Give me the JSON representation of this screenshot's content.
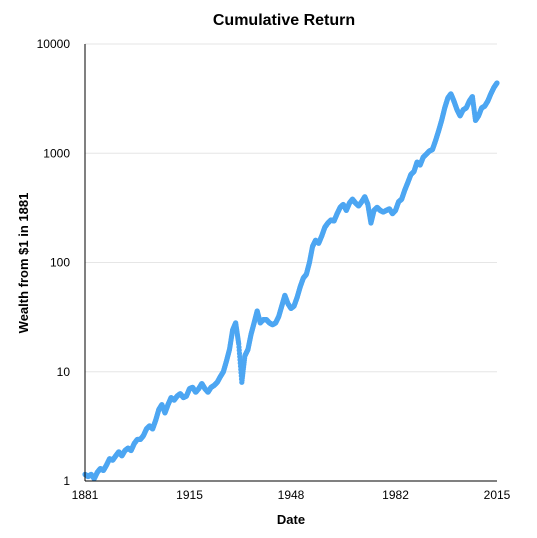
{
  "chart_data": {
    "type": "scatter",
    "title": "Cumulative Return",
    "xlabel": "Date",
    "ylabel": "Wealth from $1 in 1881",
    "xlim": [
      1881,
      2015
    ],
    "ylim": [
      1,
      10000
    ],
    "y_scale": "log",
    "x_ticks": [
      "1881",
      "1915",
      "1948",
      "1982",
      "2015"
    ],
    "y_ticks": [
      "1",
      "10",
      "100",
      "1000",
      "10000"
    ],
    "grid": "horizontal",
    "series_color": "#4da6f2",
    "series": [
      {
        "x": [
          1881,
          1882,
          1883,
          1884,
          1885,
          1886,
          1887,
          1888,
          1889,
          1890,
          1891,
          1892,
          1893,
          1894,
          1895,
          1896,
          1897,
          1898,
          1899,
          1900,
          1901,
          1902,
          1903,
          1904,
          1905,
          1906,
          1907,
          1908,
          1909,
          1910,
          1911,
          1912,
          1913,
          1914,
          1915,
          1916,
          1917,
          1918,
          1919,
          1920,
          1921,
          1922,
          1923,
          1924,
          1925,
          1926,
          1927,
          1928,
          1929,
          1930,
          1931,
          1932,
          1933,
          1934,
          1935,
          1936,
          1937,
          1938,
          1939,
          1940,
          1941,
          1942,
          1943,
          1944,
          1945,
          1946,
          1947,
          1948,
          1949,
          1950,
          1951,
          1952,
          1953,
          1954,
          1955,
          1956,
          1957,
          1958,
          1959,
          1960,
          1961,
          1962,
          1963,
          1964,
          1965,
          1966,
          1967,
          1968,
          1969,
          1970,
          1971,
          1972,
          1973,
          1974,
          1975,
          1976,
          1977,
          1978,
          1979,
          1980,
          1981,
          1982,
          1983,
          1984,
          1985,
          1986,
          1987,
          1988,
          1989,
          1990,
          1991,
          1992,
          1993,
          1994,
          1995,
          1996,
          1997,
          1998,
          1999,
          2000,
          2001,
          2002,
          2003,
          2004,
          2005,
          2006,
          2007,
          2008,
          2009,
          2010,
          2011,
          2012,
          2013,
          2014,
          2015
        ],
        "y": [
          1.15,
          1.1,
          1.15,
          1.05,
          1.2,
          1.3,
          1.25,
          1.4,
          1.6,
          1.55,
          1.7,
          1.85,
          1.7,
          1.9,
          2.0,
          1.9,
          2.2,
          2.4,
          2.4,
          2.6,
          3.0,
          3.2,
          3.0,
          3.6,
          4.5,
          5.0,
          4.2,
          5.0,
          5.8,
          5.5,
          6.0,
          6.3,
          5.8,
          6.0,
          7.0,
          7.2,
          6.5,
          7.0,
          7.8,
          7.0,
          6.5,
          7.2,
          7.5,
          8.0,
          9.0,
          10.0,
          12.5,
          16.0,
          24.0,
          28.0,
          18.0,
          8.0,
          14.0,
          16.0,
          22.0,
          28.0,
          36.0,
          28.0,
          30.0,
          30.0,
          28.0,
          27.0,
          28.0,
          32.0,
          40.0,
          50.0,
          42.0,
          38.0,
          40.0,
          48.0,
          60.0,
          72.0,
          78.0,
          100.0,
          140.0,
          160.0,
          150.0,
          175.0,
          210.0,
          230.0,
          245.0,
          240.0,
          280.0,
          320.0,
          340.0,
          300.0,
          350.0,
          380.0,
          350.0,
          330.0,
          360.0,
          400.0,
          340.0,
          230.0,
          300.0,
          320.0,
          300.0,
          290.0,
          300.0,
          310.0,
          280.0,
          300.0,
          360.0,
          380.0,
          460.0,
          540.0,
          640.0,
          680.0,
          830.0,
          780.0,
          920.0,
          980.0,
          1050.0,
          1080.0,
          1300.0,
          1600.0,
          2000.0,
          2600.0,
          3200.0,
          3500.0,
          3000.0,
          2500.0,
          2200.0,
          2500.0,
          2600.0,
          3000.0,
          3300.0,
          2000.0,
          2200.0,
          2600.0,
          2700.0,
          3000.0,
          3500.0,
          4000.0,
          4400.0
        ]
      }
    ]
  }
}
